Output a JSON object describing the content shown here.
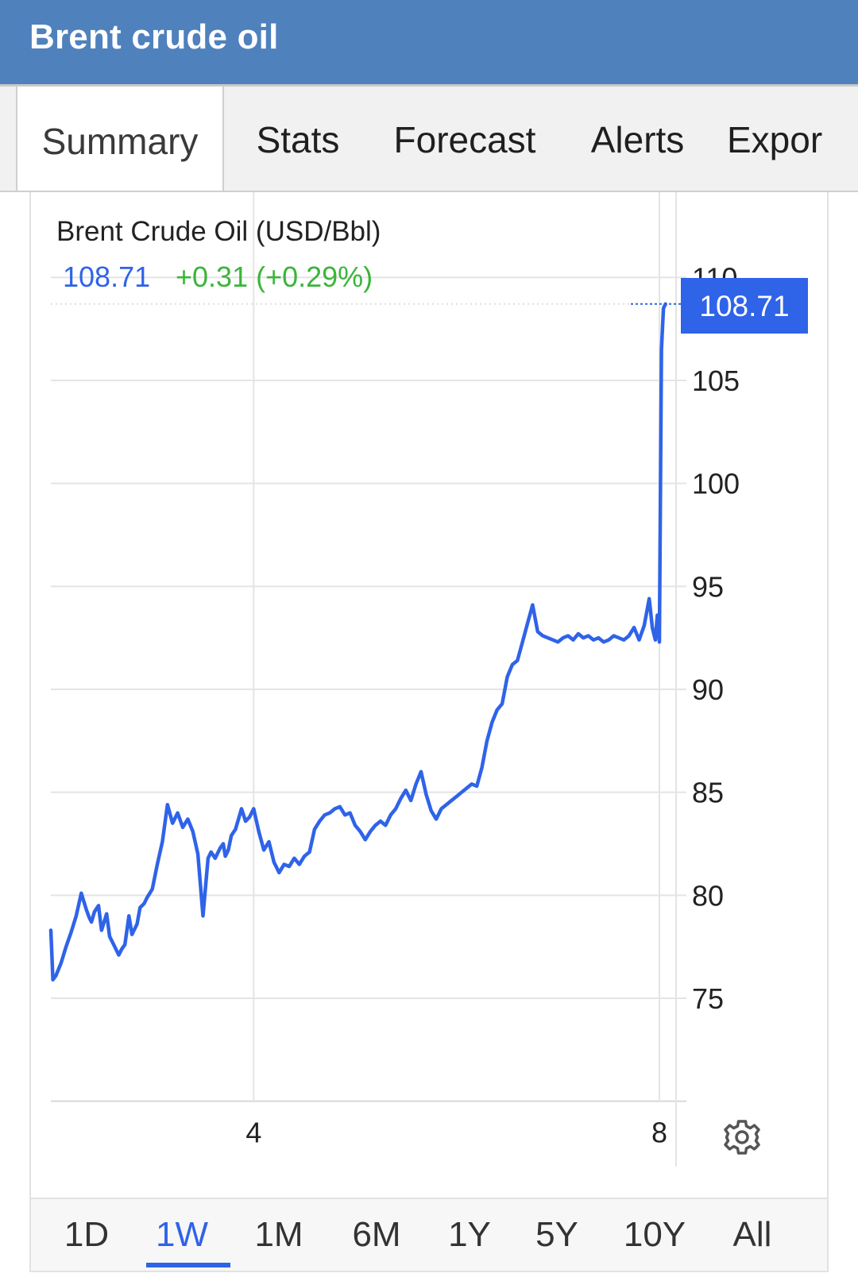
{
  "header": {
    "title": "Brent crude oil"
  },
  "tabs": [
    {
      "id": "summary",
      "label": "Summary",
      "active": true
    },
    {
      "id": "stats",
      "label": "Stats",
      "active": false
    },
    {
      "id": "forecast",
      "label": "Forecast",
      "active": false
    },
    {
      "id": "alerts",
      "label": "Alerts",
      "active": false
    },
    {
      "id": "export",
      "label": "Expor",
      "active": false
    }
  ],
  "quote": {
    "name": "Brent Crude Oil (USD/Bbl)",
    "price": "108.71",
    "change": "+0.31 (+0.29%)",
    "price_color": "#2f63e8",
    "change_color": "#3ab53a"
  },
  "settings_icon": "gear-icon",
  "ranges": [
    {
      "label": "1D",
      "active": false
    },
    {
      "label": "1W",
      "active": true
    },
    {
      "label": "1M",
      "active": false
    },
    {
      "label": "6M",
      "active": false
    },
    {
      "label": "1Y",
      "active": false
    },
    {
      "label": "5Y",
      "active": false
    },
    {
      "label": "10Y",
      "active": false
    },
    {
      "label": "All",
      "active": false
    }
  ],
  "chart_data": {
    "type": "line",
    "xlabel": "",
    "ylabel": "",
    "x_ticks": [
      {
        "label": "4",
        "x": 4
      },
      {
        "label": "8",
        "x": 8
      }
    ],
    "xlim": [
      2,
      8.13
    ],
    "y_ticks": [
      75,
      80,
      85,
      90,
      95,
      100,
      105,
      110
    ],
    "ylim": [
      70,
      111
    ],
    "grid": true,
    "last_value_label": "108.71",
    "line_color": "#2f63e8",
    "series": [
      {
        "x": [
          2.0,
          2.02,
          2.05,
          2.1,
          2.15,
          2.2,
          2.25,
          2.3,
          2.35,
          2.38,
          2.4,
          2.43,
          2.47,
          2.5,
          2.55,
          2.58,
          2.62,
          2.67,
          2.7,
          2.73,
          2.77,
          2.8,
          2.85,
          2.88,
          2.92,
          2.95,
          3.0,
          3.05,
          3.1,
          3.15,
          3.2,
          3.25,
          3.3,
          3.35,
          3.4,
          3.45,
          3.5,
          3.55,
          3.58,
          3.62,
          3.67,
          3.7,
          3.72,
          3.75,
          3.78,
          3.82,
          3.85,
          3.88,
          3.92,
          3.96,
          4.0,
          4.05,
          4.1,
          4.15,
          4.2,
          4.25,
          4.3,
          4.35,
          4.4,
          4.45,
          4.5,
          4.55,
          4.6,
          4.65,
          4.7,
          4.75,
          4.8,
          4.85,
          4.9,
          4.95,
          5.0,
          5.05,
          5.1,
          5.15,
          5.2,
          5.25,
          5.3,
          5.35,
          5.4,
          5.45,
          5.5,
          5.55,
          5.6,
          5.65,
          5.7,
          5.75,
          5.8,
          5.85,
          5.9,
          5.95,
          6.0,
          6.05,
          6.1,
          6.15,
          6.2,
          6.25,
          6.3,
          6.35,
          6.4,
          6.45,
          6.5,
          6.55,
          6.6,
          6.65,
          6.7,
          6.75,
          6.8,
          6.85,
          6.9,
          6.95,
          7.0,
          7.05,
          7.1,
          7.15,
          7.2,
          7.25,
          7.3,
          7.35,
          7.4,
          7.45,
          7.5,
          7.55,
          7.6,
          7.65,
          7.7,
          7.75,
          7.8,
          7.85,
          7.9,
          7.93,
          7.96,
          7.98,
          8.0,
          8.02,
          8.04,
          8.06
        ],
        "y": [
          78.3,
          75.9,
          76.1,
          76.7,
          77.5,
          78.2,
          79.0,
          80.1,
          79.3,
          78.9,
          78.7,
          79.2,
          79.5,
          78.3,
          79.1,
          78.0,
          77.6,
          77.1,
          77.4,
          77.6,
          79.0,
          78.1,
          78.6,
          79.4,
          79.6,
          79.9,
          80.3,
          81.5,
          82.6,
          84.4,
          83.5,
          84.0,
          83.3,
          83.7,
          83.1,
          82.0,
          79.0,
          81.8,
          82.1,
          81.8,
          82.3,
          82.5,
          81.9,
          82.2,
          82.9,
          83.2,
          83.7,
          84.2,
          83.6,
          83.8,
          84.2,
          83.1,
          82.2,
          82.6,
          81.6,
          81.1,
          81.5,
          81.4,
          81.8,
          81.5,
          81.9,
          82.1,
          83.2,
          83.6,
          83.9,
          84.0,
          84.2,
          84.3,
          83.9,
          84.0,
          83.4,
          83.1,
          82.7,
          83.1,
          83.4,
          83.6,
          83.4,
          83.9,
          84.2,
          84.7,
          85.1,
          84.6,
          85.4,
          86.0,
          84.9,
          84.1,
          83.7,
          84.2,
          84.4,
          84.6,
          84.8,
          85.0,
          85.2,
          85.4,
          85.3,
          86.2,
          87.5,
          88.4,
          89.0,
          89.3,
          90.6,
          91.2,
          91.4,
          92.3,
          93.2,
          94.1,
          92.8,
          92.6,
          92.5,
          92.4,
          92.3,
          92.5,
          92.6,
          92.4,
          92.7,
          92.5,
          92.6,
          92.4,
          92.5,
          92.3,
          92.4,
          92.6,
          92.5,
          92.4,
          92.6,
          93.0,
          92.4,
          93.1,
          94.4,
          93.0,
          92.4,
          93.6,
          92.3,
          106.5,
          108.5,
          108.71
        ]
      }
    ]
  }
}
